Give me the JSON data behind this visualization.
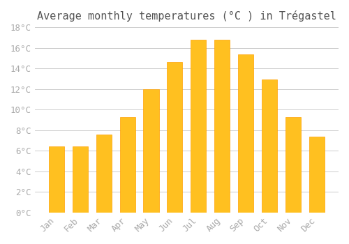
{
  "title": "Average monthly temperatures (°C ) in Trégastel",
  "months": [
    "Jan",
    "Feb",
    "Mar",
    "Apr",
    "May",
    "Jun",
    "Jul",
    "Aug",
    "Sep",
    "Oct",
    "Nov",
    "Dec"
  ],
  "values": [
    6.4,
    6.4,
    7.6,
    9.3,
    12.0,
    14.6,
    16.8,
    16.8,
    15.4,
    12.9,
    9.3,
    7.4
  ],
  "bar_color": "#FFC020",
  "bar_edge_color": "#FFA000",
  "background_color": "#ffffff",
  "grid_color": "#cccccc",
  "text_color": "#aaaaaa",
  "ylim": [
    0,
    18
  ],
  "ytick_step": 2,
  "title_fontsize": 11,
  "tick_fontsize": 9,
  "font_family": "monospace"
}
